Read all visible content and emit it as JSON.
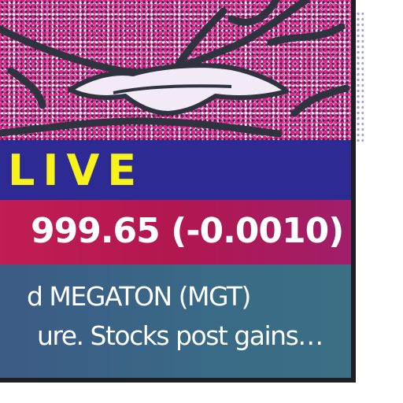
{
  "broadcast": {
    "live_label": "LIVE",
    "ticker": "999.65 (-0.0010)",
    "news_lines": [
      "d MEGATON (MGT)",
      "ure. Stocks post gains…"
    ]
  },
  "colors": {
    "live_bar": "#2d2a93",
    "live_text": "#f6f21a",
    "ticker_bar": "#b2174f",
    "news_bar": "#396a86",
    "art_magenta": "#e01f8d",
    "art_ink": "#2b2e3a"
  }
}
